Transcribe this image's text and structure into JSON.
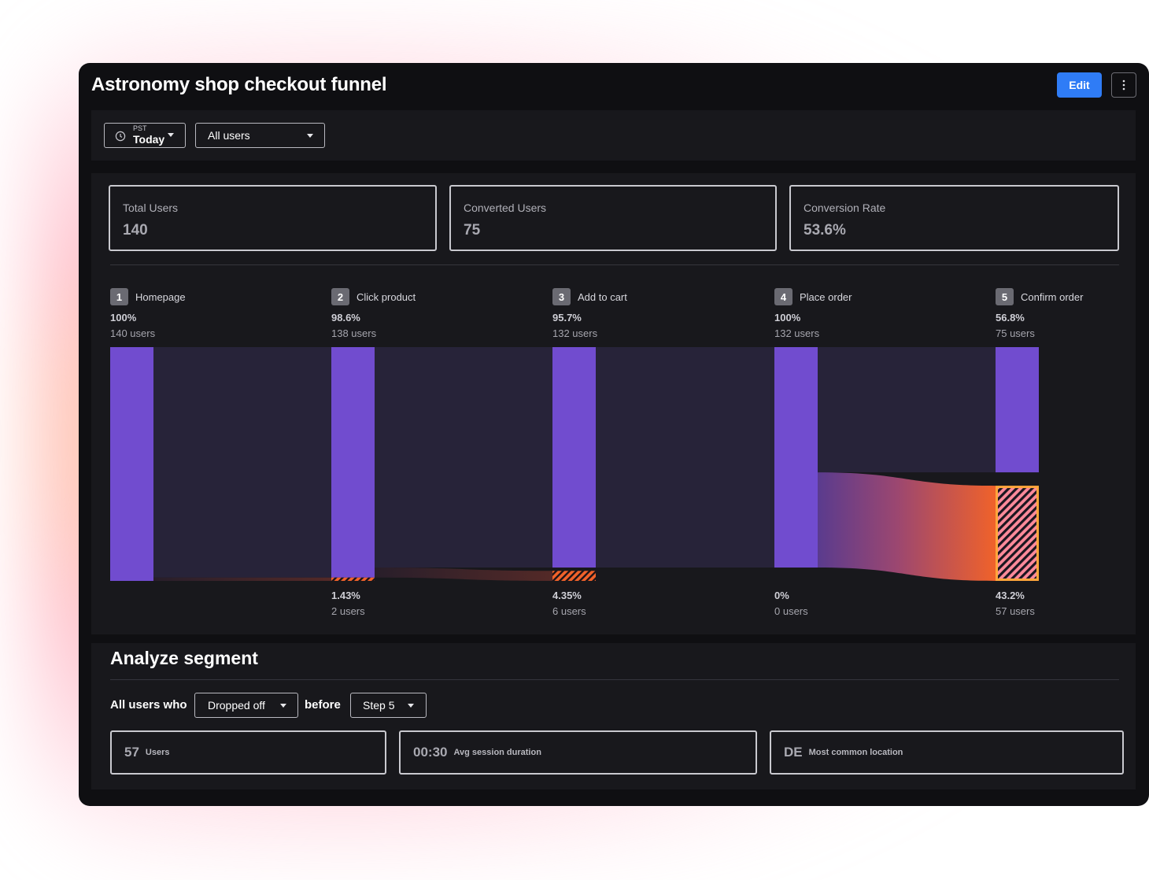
{
  "title": "Astronomy shop checkout funnel",
  "header": {
    "edit_label": "Edit",
    "more_icon": "vertical-ellipsis-icon"
  },
  "filters": {
    "timezone": "PST",
    "date_range": "Today",
    "audience": "All users"
  },
  "stats": [
    {
      "label": "Total Users",
      "value": "140"
    },
    {
      "label": "Converted Users",
      "value": "75"
    },
    {
      "label": "Conversion Rate",
      "value": "53.6%"
    }
  ],
  "steps": [
    {
      "num": "1",
      "name": "Homepage",
      "pct": "100%",
      "users": "140 users",
      "dropoff_pct": "",
      "dropoff_users": ""
    },
    {
      "num": "2",
      "name": "Click product",
      "pct": "98.6%",
      "users": "138 users",
      "dropoff_pct": "1.43%",
      "dropoff_users": "2 users"
    },
    {
      "num": "3",
      "name": "Add to cart",
      "pct": "95.7%",
      "users": "132 users",
      "dropoff_pct": "4.35%",
      "dropoff_users": "6 users"
    },
    {
      "num": "4",
      "name": "Place order",
      "pct": "100%",
      "users": "132 users",
      "dropoff_pct": "0%",
      "dropoff_users": "0 users"
    },
    {
      "num": "5",
      "name": "Confirm order",
      "pct": "56.8%",
      "users": "75 users",
      "dropoff_pct": "43.2%",
      "dropoff_users": "57 users"
    }
  ],
  "chart_data": {
    "type": "bar",
    "categories": [
      "Homepage",
      "Click product",
      "Add to cart",
      "Place order",
      "Confirm order"
    ],
    "series": [
      {
        "name": "",
        "values": [
          140,
          138,
          132,
          132,
          75
        ]
      }
    ],
    "dropoff": [
      0,
      2,
      6,
      0,
      57
    ],
    "total": 140,
    "colors": {
      "bar": "#714ccf",
      "flow": "#272339",
      "dropoff": "#f0622a",
      "highlight": "#ffa63b"
    }
  },
  "segment": {
    "title": "Analyze segment",
    "prefix": "All users who",
    "action": "Dropped off",
    "connector": "before",
    "step": "Step 5",
    "cards": [
      {
        "value": "57",
        "label": "Users"
      },
      {
        "value": "00:30",
        "label": "Avg session duration"
      },
      {
        "value": "DE",
        "label": "Most common location"
      }
    ]
  }
}
